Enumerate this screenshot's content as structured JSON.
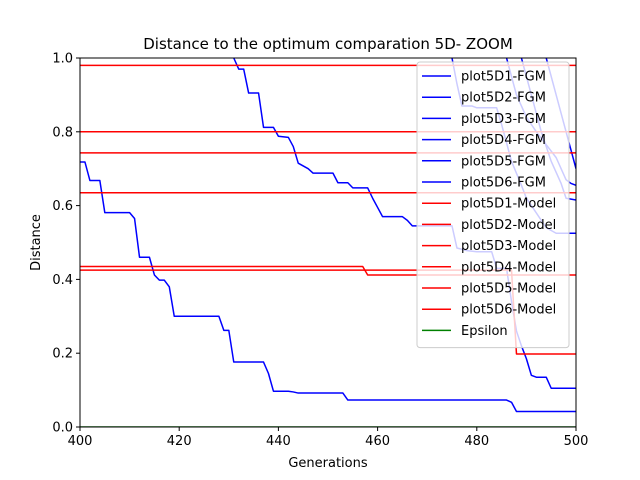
{
  "chart_data": {
    "type": "line",
    "title": "Distance to the optimum comparation 5D- ZOOM",
    "xlabel": "Generations",
    "ylabel": "Distance",
    "xlim": [
      400,
      500
    ],
    "ylim": [
      0,
      1.0
    ],
    "xticks": [
      400,
      420,
      440,
      460,
      480,
      500
    ],
    "yticks": [
      0.0,
      0.2,
      0.4,
      0.6,
      0.8,
      1.0
    ],
    "xtick_labels": [
      "400",
      "420",
      "440",
      "460",
      "480",
      "500"
    ],
    "ytick_labels": [
      "0.0",
      "0.2",
      "0.4",
      "0.6",
      "0.8",
      "1.0"
    ],
    "grid": false,
    "legend_position": "top-right",
    "colors": {
      "fgm": "#0000ff",
      "model": "#ff0000",
      "epsilon": "#008000"
    },
    "series": [
      {
        "name": "plot5D1-FGM",
        "color": "#0000ff",
        "step": true,
        "points": [
          [
            400,
            0.718
          ],
          [
            401,
            0.718
          ],
          [
            402,
            0.668
          ],
          [
            404,
            0.668
          ],
          [
            405,
            0.581
          ],
          [
            410,
            0.581
          ],
          [
            411,
            0.565
          ],
          [
            412,
            0.46
          ],
          [
            414,
            0.46
          ],
          [
            415,
            0.412
          ],
          [
            416,
            0.398
          ],
          [
            417,
            0.398
          ],
          [
            418,
            0.38
          ],
          [
            419,
            0.3
          ],
          [
            427,
            0.3
          ],
          [
            428,
            0.3
          ],
          [
            429,
            0.262
          ],
          [
            430,
            0.262
          ],
          [
            431,
            0.176
          ],
          [
            437,
            0.176
          ],
          [
            438,
            0.145
          ],
          [
            439,
            0.097
          ],
          [
            442,
            0.097
          ],
          [
            443,
            0.095
          ],
          [
            444,
            0.092
          ],
          [
            453,
            0.092
          ],
          [
            454,
            0.073
          ],
          [
            486,
            0.073
          ],
          [
            487,
            0.067
          ],
          [
            488,
            0.042
          ],
          [
            500,
            0.042
          ]
        ]
      },
      {
        "name": "plot5D2-FGM",
        "color": "#0000ff",
        "step": true,
        "points": [
          [
            431,
            1.0
          ],
          [
            432,
            0.97
          ],
          [
            433,
            0.97
          ],
          [
            434,
            0.905
          ],
          [
            436,
            0.905
          ],
          [
            437,
            0.812
          ],
          [
            439,
            0.812
          ],
          [
            440,
            0.788
          ],
          [
            442,
            0.785
          ],
          [
            443,
            0.76
          ],
          [
            444,
            0.715
          ],
          [
            446,
            0.7
          ],
          [
            447,
            0.688
          ],
          [
            451,
            0.688
          ],
          [
            452,
            0.662
          ],
          [
            454,
            0.662
          ],
          [
            455,
            0.648
          ],
          [
            458,
            0.648
          ],
          [
            459,
            0.62
          ],
          [
            460,
            0.595
          ],
          [
            461,
            0.57
          ],
          [
            465,
            0.57
          ],
          [
            466,
            0.56
          ],
          [
            467,
            0.545
          ],
          [
            475,
            0.545
          ],
          [
            476,
            0.485
          ],
          [
            478,
            0.478
          ],
          [
            480,
            0.475
          ],
          [
            483,
            0.475
          ],
          [
            484,
            0.43
          ],
          [
            486,
            0.43
          ],
          [
            487,
            0.34
          ],
          [
            488,
            0.26
          ],
          [
            489,
            0.22
          ],
          [
            490,
            0.185
          ],
          [
            491,
            0.14
          ],
          [
            492,
            0.135
          ],
          [
            494,
            0.135
          ],
          [
            495,
            0.105
          ],
          [
            500,
            0.105
          ]
        ]
      },
      {
        "name": "plot5D3-FGM",
        "color": "#0000ff",
        "step": true,
        "points": [
          [
            475,
            1.0
          ],
          [
            476,
            0.93
          ],
          [
            477,
            0.87
          ],
          [
            479,
            0.87
          ],
          [
            480,
            0.865
          ],
          [
            484,
            0.865
          ],
          [
            485,
            0.82
          ],
          [
            487,
            0.72
          ],
          [
            489,
            0.655
          ],
          [
            490,
            0.62
          ],
          [
            492,
            0.58
          ],
          [
            494,
            0.54
          ],
          [
            496,
            0.525
          ],
          [
            500,
            0.525
          ]
        ]
      },
      {
        "name": "plot5D4-FGM",
        "color": "#0000ff",
        "step": true,
        "points": [
          [
            486,
            1.0
          ],
          [
            488,
            0.9
          ],
          [
            490,
            0.84
          ],
          [
            492,
            0.8
          ],
          [
            494,
            0.765
          ],
          [
            496,
            0.73
          ],
          [
            498,
            0.67
          ],
          [
            499,
            0.66
          ],
          [
            500,
            0.655
          ]
        ]
      },
      {
        "name": "plot5D5-FGM",
        "color": "#0000ff",
        "step": true,
        "points": [
          [
            489,
            1.0
          ],
          [
            491,
            0.9
          ],
          [
            493,
            0.8
          ],
          [
            495,
            0.72
          ],
          [
            497,
            0.66
          ],
          [
            498,
            0.62
          ],
          [
            500,
            0.615
          ]
        ]
      },
      {
        "name": "plot5D6-FGM",
        "color": "#0000ff",
        "step": true,
        "points": [
          [
            494,
            1.0
          ],
          [
            496,
            0.9
          ],
          [
            498,
            0.8
          ],
          [
            500,
            0.7
          ]
        ]
      },
      {
        "name": "plot5D1-Model",
        "color": "#ff0000",
        "step": true,
        "points": [
          [
            400,
            0.98
          ],
          [
            500,
            0.98
          ]
        ]
      },
      {
        "name": "plot5D2-Model",
        "color": "#ff0000",
        "step": true,
        "points": [
          [
            400,
            0.8
          ],
          [
            500,
            0.8
          ]
        ]
      },
      {
        "name": "plot5D3-Model",
        "color": "#ff0000",
        "step": true,
        "points": [
          [
            400,
            0.743
          ],
          [
            500,
            0.743
          ]
        ]
      },
      {
        "name": "plot5D4-Model",
        "color": "#ff0000",
        "step": true,
        "points": [
          [
            400,
            0.635
          ],
          [
            500,
            0.635
          ]
        ]
      },
      {
        "name": "plot5D5-Model",
        "color": "#ff0000",
        "step": true,
        "points": [
          [
            400,
            0.435
          ],
          [
            457,
            0.435
          ],
          [
            458,
            0.412
          ],
          [
            500,
            0.412
          ]
        ]
      },
      {
        "name": "plot5D6-Model",
        "color": "#ff0000",
        "step": true,
        "points": [
          [
            400,
            0.425
          ],
          [
            487,
            0.425
          ],
          [
            488,
            0.198
          ],
          [
            500,
            0.198
          ]
        ]
      },
      {
        "name": "Epsilon",
        "color": "#008000",
        "step": true,
        "points": [
          [
            400,
            0.0
          ],
          [
            500,
            0.0
          ]
        ]
      }
    ]
  }
}
